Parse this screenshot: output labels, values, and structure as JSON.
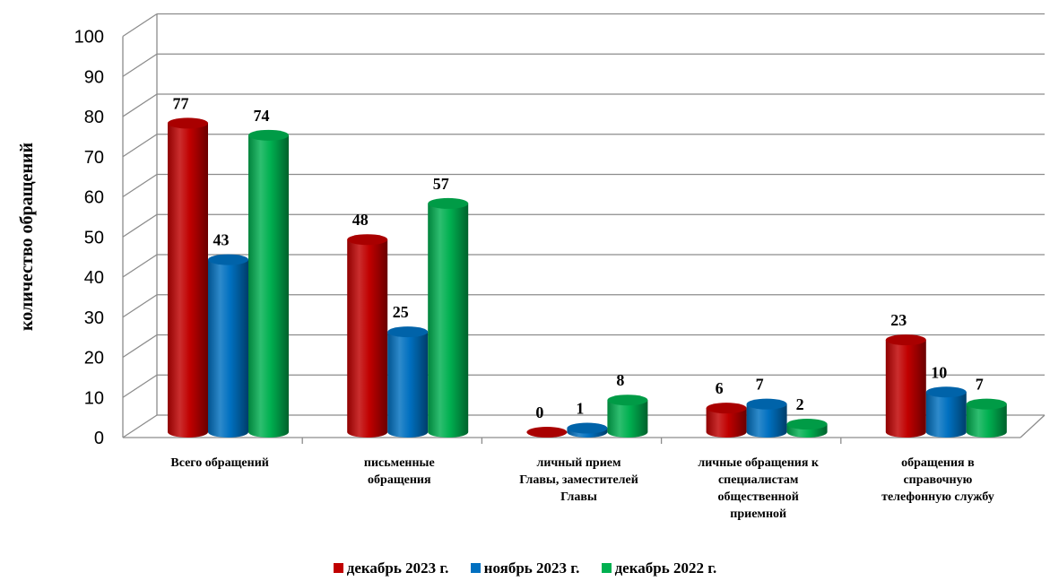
{
  "chart_data": {
    "type": "bar",
    "ylabel": "количество обращений",
    "ylim": [
      0,
      100
    ],
    "yticks": [
      "0",
      "10",
      "20",
      "30",
      "40",
      "50",
      "60",
      "70",
      "80",
      "90",
      "100"
    ],
    "grid": true,
    "legend_position": "bottom",
    "categories": [
      [
        "Всего обращений"
      ],
      [
        "письменные",
        "обращения"
      ],
      [
        "личный прием",
        "Главы, заместителей",
        "Главы"
      ],
      [
        "личные обращения к",
        "специалистам",
        "общественной",
        "приемной"
      ],
      [
        "обращения в",
        "справочную",
        "телефонную службу"
      ]
    ],
    "series": [
      {
        "name": "декабрь 2023 г.",
        "color": "#c00000",
        "values": [
          77,
          48,
          0,
          6,
          23
        ]
      },
      {
        "name": "ноябрь 2023 г.",
        "color": "#0070c0",
        "values": [
          43,
          25,
          1,
          7,
          10
        ]
      },
      {
        "name": "декабрь  2022 г.",
        "color": "#00b050",
        "values": [
          74,
          57,
          8,
          2,
          7
        ]
      }
    ]
  }
}
